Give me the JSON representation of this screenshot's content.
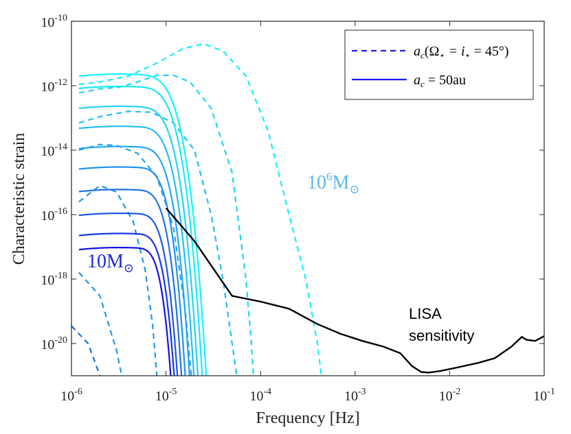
{
  "chart_data": {
    "type": "line",
    "xscale": "log",
    "yscale": "log",
    "xlabel": "Frequency [Hz]",
    "ylabel": "Characteristic strain",
    "xlim": [
      1e-06,
      0.1
    ],
    "ylim": [
      1e-21,
      1e-10
    ],
    "grid": false,
    "legend_location": "top-right",
    "x_ticks": [
      {
        "base": "10",
        "exp": "-6",
        "value": 1e-06
      },
      {
        "base": "10",
        "exp": "-5",
        "value": 1e-05
      },
      {
        "base": "10",
        "exp": "-4",
        "value": 0.0001
      },
      {
        "base": "10",
        "exp": "-3",
        "value": 0.001
      },
      {
        "base": "10",
        "exp": "-2",
        "value": 0.01
      },
      {
        "base": "10",
        "exp": "-1",
        "value": 0.1
      }
    ],
    "y_ticks": [
      {
        "base": "10",
        "exp": "-10",
        "value": 1e-10
      },
      {
        "base": "10",
        "exp": "-12",
        "value": 1e-12
      },
      {
        "base": "10",
        "exp": "-14",
        "value": 1e-14
      },
      {
        "base": "10",
        "exp": "-16",
        "value": 1e-16
      },
      {
        "base": "10",
        "exp": "-18",
        "value": 1e-18
      },
      {
        "base": "10",
        "exp": "-20",
        "value": 1e-20
      }
    ],
    "legend": [
      {
        "style": "dashed",
        "color": "#1a1aff",
        "label_prefix": "a",
        "label_sub": "c",
        "label_rest": "(Ω",
        "label_sub2": "⋆",
        "label_mid": " = i",
        "label_sub3": "⋆",
        "label_end": " = 45°)"
      },
      {
        "style": "solid",
        "color": "#1a1aff",
        "label_prefix": "a",
        "label_sub": "c",
        "label_rest": " = 50au",
        "label_sub2": "",
        "label_mid": "",
        "label_sub3": "",
        "label_end": ""
      }
    ],
    "annotations": {
      "low_mass": {
        "base": "10M",
        "sub": "⊙",
        "color": "#1f2ad6"
      },
      "high_mass": {
        "base": "10",
        "exp": "6",
        "unit": "M",
        "sub": "⊙",
        "color": "#5bb8e8"
      },
      "lisa_line1": "LISA",
      "lisa_line2": "sensitivity"
    },
    "solid_series": [
      {
        "color": "#1010e0",
        "peak_f": 3.2e-06,
        "peak_h": 9.5e-18,
        "cutoff_f": 1.14e-05
      },
      {
        "color": "#1634e6",
        "peak_f": 3.2e-06,
        "peak_h": 2.6e-17,
        "cutoff_f": 1.24e-05
      },
      {
        "color": "#1b55ea",
        "peak_f": 3.2e-06,
        "peak_h": 1.1e-16,
        "cutoff_f": 1.34e-05
      },
      {
        "color": "#1e70ee",
        "peak_f": 3.2e-06,
        "peak_h": 6e-16,
        "cutoff_f": 1.48e-05
      },
      {
        "color": "#2090f0",
        "peak_f": 3.2e-06,
        "peak_h": 3e-15,
        "cutoff_f": 1.62e-05
      },
      {
        "color": "#22a6f2",
        "peak_f": 3.2e-06,
        "peak_h": 1.3e-14,
        "cutoff_f": 1.8e-05
      },
      {
        "color": "#22bef4",
        "peak_f": 3.2e-06,
        "peak_h": 5.5e-14,
        "cutoff_f": 2e-05
      },
      {
        "color": "#20d4f6",
        "peak_f": 3.2e-06,
        "peak_h": 2.3e-13,
        "cutoff_f": 2.2e-05
      },
      {
        "color": "#1ae8f8",
        "peak_f": 3.2e-06,
        "peak_h": 9.5e-13,
        "cutoff_f": 2.45e-05
      },
      {
        "color": "#10f4fa",
        "peak_f": 3.2e-06,
        "peak_h": 2.3e-12,
        "cutoff_f": 2.7e-05
      }
    ],
    "dashed_series": [
      {
        "color": "#1a6fe0",
        "points": [
          [
            1e-06,
            3.5e-20
          ],
          [
            1.5e-06,
            1e-20
          ],
          [
            2e-06,
            1e-21
          ]
        ]
      },
      {
        "color": "#1f95f0",
        "points": [
          [
            1.2e-06,
            1.6e-18
          ],
          [
            2e-06,
            3e-19
          ],
          [
            3e-06,
            6e-21
          ],
          [
            3.4e-06,
            1e-21
          ]
        ]
      },
      {
        "color": "#1f95f0",
        "points": [
          [
            1.2e-06,
            2.5e-16
          ],
          [
            2e-06,
            8e-16
          ],
          [
            3e-06,
            5e-16
          ],
          [
            4.5e-06,
            6e-17
          ],
          [
            6e-06,
            2e-18
          ],
          [
            7.2e-06,
            4e-20
          ],
          [
            8e-06,
            1e-21
          ]
        ]
      },
      {
        "color": "#22a6f2",
        "points": [
          [
            1.2e-06,
            1e-14
          ],
          [
            2e-06,
            1.5e-14
          ],
          [
            3e-06,
            1.4e-14
          ],
          [
            5e-06,
            8e-15
          ],
          [
            8e-06,
            1.5e-15
          ],
          [
            1.2e-05,
            4e-17
          ],
          [
            1.6e-05,
            1e-19
          ],
          [
            1.85e-05,
            1e-21
          ]
        ]
      },
      {
        "color": "#22bef4",
        "points": [
          [
            1.2e-06,
            7e-14
          ],
          [
            2e-06,
            1.1e-13
          ],
          [
            4e-06,
            1.6e-13
          ],
          [
            7e-06,
            1.5e-13
          ],
          [
            1.2e-05,
            7e-14
          ],
          [
            2e-05,
            1e-14
          ],
          [
            3e-05,
            1e-16
          ],
          [
            4e-05,
            1e-18
          ],
          [
            5e-05,
            1e-20
          ],
          [
            5.6e-05,
            1e-21
          ]
        ]
      },
      {
        "color": "#1ad6f6",
        "points": [
          [
            1.2e-06,
            6e-13
          ],
          [
            2e-06,
            8e-13
          ],
          [
            3.2e-06,
            9e-13
          ],
          [
            5e-06,
            1.3e-12
          ],
          [
            8e-06,
            2.1e-12
          ],
          [
            1.2e-05,
            2.1e-12
          ],
          [
            1.8e-05,
            1.3e-12
          ],
          [
            3e-05,
            2e-13
          ],
          [
            5e-05,
            2e-15
          ],
          [
            7e-05,
            1e-18
          ],
          [
            8e-05,
            1e-20
          ],
          [
            8.4e-05,
            1e-21
          ]
        ]
      },
      {
        "color": "#10f0fa",
        "points": [
          [
            1.2e-06,
            1.1e-12
          ],
          [
            2e-06,
            1.3e-12
          ],
          [
            4e-06,
            2e-12
          ],
          [
            8e-06,
            5e-12
          ],
          [
            1.5e-05,
            1.4e-11
          ],
          [
            2.5e-05,
            2e-11
          ],
          [
            4e-05,
            1.2e-11
          ],
          [
            7e-05,
            2e-12
          ],
          [
            0.00012,
            4e-14
          ],
          [
            0.0002,
            1e-16
          ],
          [
            0.0003,
            1e-18
          ],
          [
            0.0004,
            1e-20
          ],
          [
            0.00044,
            1e-21
          ]
        ]
      }
    ],
    "lisa_sensitivity": [
      [
        1e-05,
        1.6e-16
      ],
      [
        2e-05,
        1.5e-17
      ],
      [
        5e-05,
        3e-19
      ],
      [
        0.0001,
        2e-19
      ],
      [
        0.0002,
        1.2e-19
      ],
      [
        0.0004,
        4e-20
      ],
      [
        0.0007,
        2e-20
      ],
      [
        0.0012,
        1.2e-20
      ],
      [
        0.002,
        8e-21
      ],
      [
        0.003,
        5e-21
      ],
      [
        0.004,
        2e-21
      ],
      [
        0.005,
        1.3e-21
      ],
      [
        0.006,
        1.25e-21
      ],
      [
        0.008,
        1.4e-21
      ],
      [
        0.012,
        1.8e-21
      ],
      [
        0.02,
        2.5e-21
      ],
      [
        0.03,
        3.5e-21
      ],
      [
        0.045,
        8e-21
      ],
      [
        0.058,
        1.6e-20
      ],
      [
        0.065,
        1.3e-20
      ],
      [
        0.08,
        1.2e-20
      ],
      [
        0.1,
        1.7e-20
      ]
    ]
  }
}
